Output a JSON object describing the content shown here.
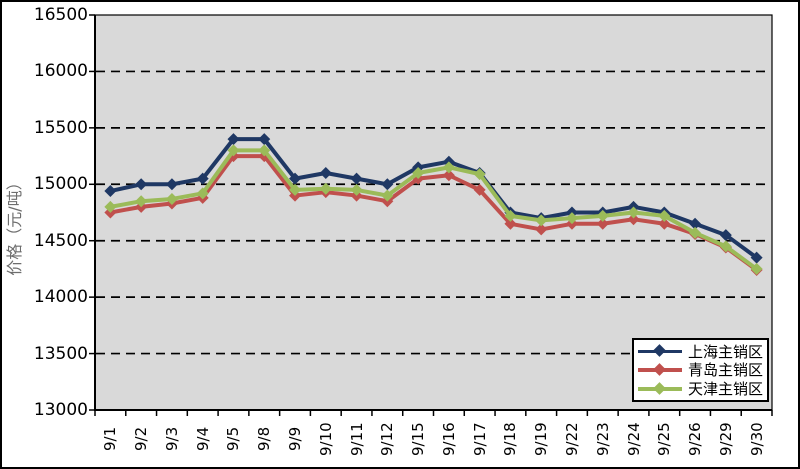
{
  "chart_data": {
    "type": "line",
    "title": "",
    "xlabel": "",
    "ylabel": "价格（元/吨）",
    "ylim": [
      13000,
      16500
    ],
    "yticks": [
      16500,
      16000,
      15500,
      15000,
      14500,
      14000,
      13500,
      13000
    ],
    "grid": "horizontal-dashed-black",
    "plot_bg": "#d9d9d9",
    "legend_position": "bottom-right",
    "categories": [
      "9/1",
      "9/2",
      "9/3",
      "9/4",
      "9/5",
      "9/8",
      "9/9",
      "9/10",
      "9/11",
      "9/12",
      "9/15",
      "9/16",
      "9/17",
      "9/18",
      "9/19",
      "9/22",
      "9/23",
      "9/24",
      "9/25",
      "9/26",
      "9/29",
      "9/30"
    ],
    "series": [
      {
        "name": "上海主销区",
        "color": "#1f3864",
        "marker": "diamond",
        "values": [
          14940,
          15000,
          15000,
          15050,
          15400,
          15400,
          15050,
          15100,
          15050,
          15000,
          15150,
          15200,
          15100,
          14750,
          14700,
          14750,
          14750,
          14800,
          14750,
          14650,
          14550,
          14350
        ]
      },
      {
        "name": "青岛主销区",
        "color": "#c0504d",
        "marker": "diamond",
        "values": [
          14750,
          14800,
          14830,
          14880,
          15250,
          15250,
          14900,
          14930,
          14900,
          14850,
          15050,
          15080,
          14950,
          14650,
          14600,
          14650,
          14650,
          14690,
          14650,
          14560,
          14440,
          14240
        ]
      },
      {
        "name": "天津主销区",
        "color": "#9bbb59",
        "marker": "diamond",
        "values": [
          14800,
          14850,
          14870,
          14920,
          15300,
          15300,
          14950,
          14960,
          14950,
          14900,
          15100,
          15150,
          15090,
          14720,
          14680,
          14700,
          14720,
          14750,
          14720,
          14570,
          14450,
          14250
        ]
      }
    ]
  }
}
